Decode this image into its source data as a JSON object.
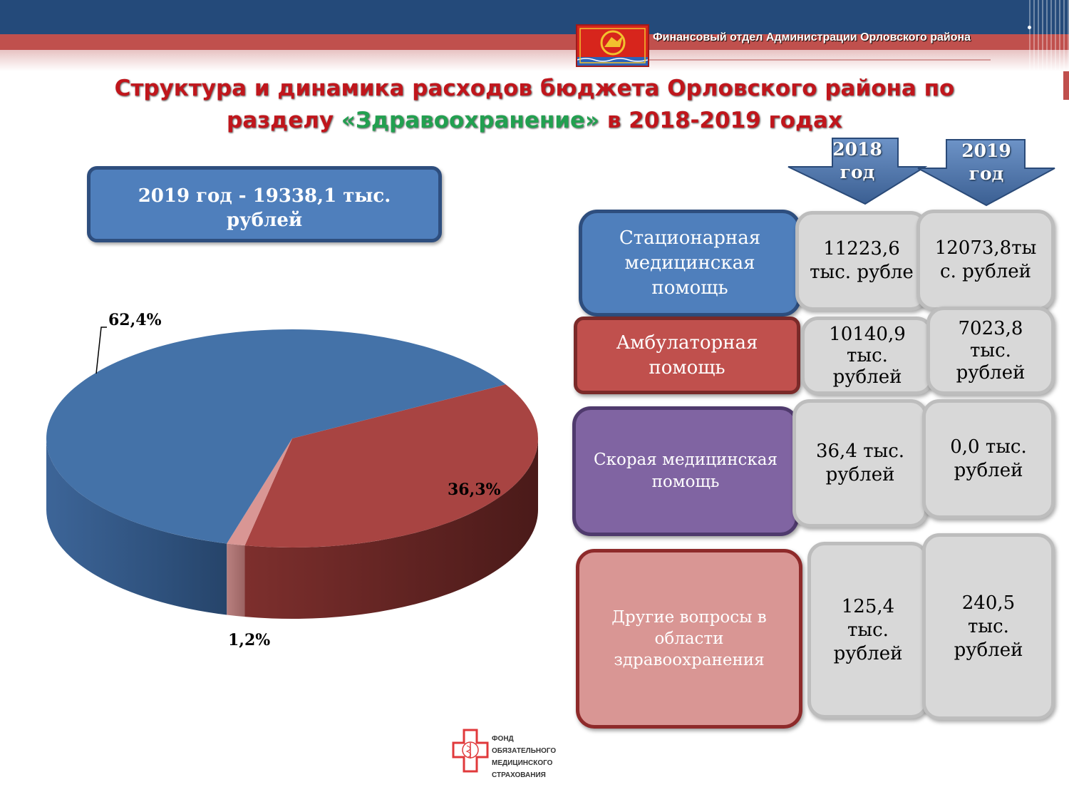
{
  "header": {
    "department": "Финансовый отдел Администрации Орловского района"
  },
  "title": {
    "line1": "Структура и динамика расходов бюджета Орловского района по",
    "line2_prefix": "разделу ",
    "line2_highlight": "«Здравоохранение»",
    "line2_suffix": " в 2018-2019 годах"
  },
  "total_box": {
    "line1": "2019 год  -  19338,1 тыс.",
    "line2": "рублей"
  },
  "year_headers": [
    {
      "line1": "2018",
      "line2": "год"
    },
    {
      "line1": "2019",
      "line2": "год"
    }
  ],
  "categories": [
    {
      "label_lines": [
        "Стационарная",
        "медицинская",
        "помощь"
      ],
      "v2018": [
        "11223,6",
        "тыс. рубле"
      ],
      "v2019": [
        "12073,8ты",
        "с. рублей"
      ],
      "color": "#4f7fbc"
    },
    {
      "label_lines": [
        "Амбулаторная",
        "помощь"
      ],
      "v2018": [
        "10140,9",
        "тыс.",
        "рублей"
      ],
      "v2019": [
        "7023,8",
        "тыс.",
        "рублей"
      ],
      "color": "#c0504d"
    },
    {
      "label_lines": [
        "Скорая медицинская",
        "помощь"
      ],
      "v2018": [
        "36,4 тыс.",
        "рублей"
      ],
      "v2019": [
        "0,0 тыс.",
        "рублей"
      ],
      "color": "#8064a2"
    },
    {
      "label_lines": [
        "Другие вопросы в",
        "области",
        "здравоохранения"
      ],
      "v2018": [
        "125,4",
        "тыс.",
        "рублей"
      ],
      "v2019": [
        "240,5",
        "тыс.",
        "рублей"
      ],
      "color": "#d99694"
    }
  ],
  "chart_data": {
    "type": "pie",
    "style": "3d",
    "slices": [
      {
        "value": 62.4,
        "label": "62,4%",
        "color": "#4472a8"
      },
      {
        "value": 36.3,
        "label": "36,3%",
        "color": "#a84442"
      },
      {
        "value": 1.2,
        "label": "1,2%",
        "color": "#d99694"
      }
    ]
  },
  "footer_logo": {
    "lines": [
      "ФОНД ОБЯЗАТЕЛЬНОГО",
      "МЕДИЦИНСКОГО",
      "СТРАХОВАНИЯ"
    ]
  }
}
